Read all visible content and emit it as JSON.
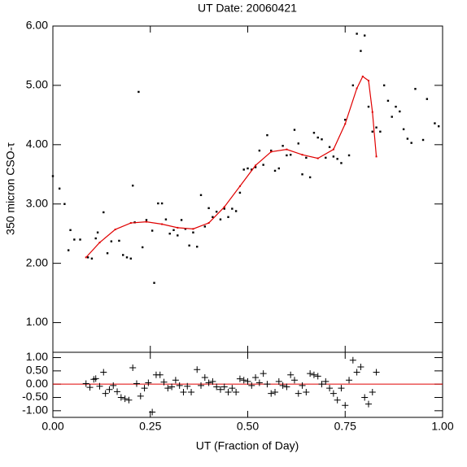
{
  "chart_data": [
    {
      "type": "scatter",
      "title": "UT Date: 20060421",
      "ylabel": "350 micron CSO-τ",
      "xlim": [
        0,
        1
      ],
      "ylim": [
        0.5,
        6.0
      ],
      "yticks": [
        {
          "value": 1,
          "label": "1.00"
        },
        {
          "value": 2,
          "label": "2.00"
        },
        {
          "value": 3,
          "label": "3.00"
        },
        {
          "value": 4,
          "label": "4.00"
        },
        {
          "value": 5,
          "label": "5.00"
        },
        {
          "value": 6,
          "label": "6.00"
        }
      ],
      "series": [
        {
          "marker": "point",
          "color": "#000000",
          "x": [
            0.0,
            0.017,
            0.03,
            0.04,
            0.045,
            0.055,
            0.07,
            0.09,
            0.1,
            0.11,
            0.115,
            0.13,
            0.14,
            0.15,
            0.17,
            0.18,
            0.19,
            0.2,
            0.205,
            0.21,
            0.22,
            0.23,
            0.24,
            0.255,
            0.26,
            0.27,
            0.28,
            0.29,
            0.3,
            0.31,
            0.32,
            0.33,
            0.34,
            0.35,
            0.36,
            0.37,
            0.38,
            0.39,
            0.4,
            0.41,
            0.42,
            0.43,
            0.44,
            0.45,
            0.46,
            0.47,
            0.48,
            0.49,
            0.5,
            0.51,
            0.52,
            0.53,
            0.54,
            0.55,
            0.56,
            0.57,
            0.58,
            0.59,
            0.6,
            0.61,
            0.62,
            0.63,
            0.64,
            0.65,
            0.66,
            0.67,
            0.68,
            0.69,
            0.7,
            0.71,
            0.72,
            0.73,
            0.74,
            0.75,
            0.76,
            0.77,
            0.78,
            0.79,
            0.8,
            0.81,
            0.82,
            0.83,
            0.84,
            0.85,
            0.86,
            0.87,
            0.88,
            0.89,
            0.9,
            0.91,
            0.92,
            0.93,
            0.95,
            0.96,
            0.98,
            0.99
          ],
          "values": [
            3.47,
            3.26,
            3.0,
            2.22,
            2.56,
            2.4,
            2.4,
            2.1,
            2.08,
            2.42,
            2.52,
            2.86,
            2.17,
            2.37,
            2.38,
            2.14,
            2.1,
            2.08,
            3.31,
            2.69,
            4.89,
            2.27,
            2.73,
            2.55,
            1.67,
            3.01,
            3.01,
            2.74,
            2.5,
            2.56,
            2.47,
            2.73,
            2.58,
            2.3,
            2.52,
            2.28,
            3.15,
            2.62,
            2.93,
            2.78,
            2.87,
            2.74,
            2.92,
            2.78,
            2.92,
            2.88,
            3.19,
            3.58,
            3.6,
            3.58,
            3.62,
            3.9,
            3.66,
            4.16,
            3.9,
            3.56,
            3.6,
            3.98,
            3.82,
            3.83,
            4.25,
            4.02,
            3.5,
            3.78,
            3.45,
            4.2,
            4.12,
            4.09,
            3.78,
            3.96,
            3.8,
            3.76,
            3.69,
            4.42,
            3.82,
            5.0,
            5.87,
            5.58,
            5.84,
            4.64,
            4.22,
            4.29,
            4.22,
            5.0,
            4.74,
            4.47,
            4.64,
            4.56,
            4.26,
            4.1,
            4.03,
            4.94,
            4.08,
            4.77,
            4.36,
            4.31
          ]
        },
        {
          "marker": "line",
          "color": "#e00000",
          "x": [
            0.085,
            0.12,
            0.16,
            0.2,
            0.24,
            0.28,
            0.32,
            0.36,
            0.4,
            0.44,
            0.48,
            0.52,
            0.56,
            0.6,
            0.64,
            0.68,
            0.72,
            0.75,
            0.78,
            0.795,
            0.81,
            0.82,
            0.83
          ],
          "values": [
            2.1,
            2.35,
            2.57,
            2.68,
            2.7,
            2.66,
            2.6,
            2.58,
            2.68,
            2.95,
            3.3,
            3.65,
            3.88,
            3.92,
            3.83,
            3.77,
            3.92,
            4.35,
            4.95,
            5.15,
            5.08,
            4.55,
            3.8
          ]
        }
      ]
    },
    {
      "type": "scatter",
      "xlabel": "UT (Fraction of Day)",
      "xlim": [
        0,
        1
      ],
      "xticks": [
        {
          "value": 0,
          "label": "0.00"
        },
        {
          "value": 0.25,
          "label": "0.25"
        },
        {
          "value": 0.5,
          "label": "0.50"
        },
        {
          "value": 0.75,
          "label": "0.75"
        },
        {
          "value": 1,
          "label": "1.00"
        }
      ],
      "ylim": [
        -1.25,
        1.2
      ],
      "yticks": [
        {
          "value": 1,
          "label": "1.00"
        },
        {
          "value": 0.5,
          "label": "0.50"
        },
        {
          "value": 0,
          "label": "0.00"
        },
        {
          "value": -0.5,
          "label": "-0.50"
        },
        {
          "value": -1,
          "label": "-1.00"
        }
      ],
      "reference_line": {
        "value": 0,
        "color": "#e00000"
      },
      "series": [
        {
          "marker": "plus",
          "color": "#000000",
          "x": [
            0.085,
            0.095,
            0.105,
            0.11,
            0.12,
            0.13,
            0.135,
            0.145,
            0.155,
            0.165,
            0.175,
            0.185,
            0.195,
            0.205,
            0.215,
            0.225,
            0.235,
            0.245,
            0.255,
            0.265,
            0.275,
            0.285,
            0.295,
            0.305,
            0.315,
            0.325,
            0.335,
            0.345,
            0.355,
            0.37,
            0.38,
            0.39,
            0.4,
            0.41,
            0.42,
            0.43,
            0.44,
            0.45,
            0.46,
            0.47,
            0.48,
            0.49,
            0.5,
            0.51,
            0.52,
            0.53,
            0.54,
            0.55,
            0.56,
            0.57,
            0.58,
            0.59,
            0.6,
            0.61,
            0.62,
            0.63,
            0.64,
            0.65,
            0.66,
            0.67,
            0.68,
            0.69,
            0.7,
            0.71,
            0.72,
            0.73,
            0.74,
            0.75,
            0.76,
            0.77,
            0.78,
            0.79,
            0.8,
            0.81,
            0.82,
            0.83
          ],
          "values": [
            0.02,
            -0.12,
            0.18,
            0.21,
            -0.08,
            0.45,
            -0.35,
            -0.2,
            -0.05,
            -0.28,
            -0.5,
            -0.55,
            -0.6,
            0.62,
            0.02,
            -0.45,
            -0.15,
            0.05,
            -1.05,
            0.35,
            0.35,
            0.08,
            -0.15,
            -0.1,
            0.15,
            -0.05,
            -0.3,
            -0.08,
            -0.3,
            0.55,
            -0.05,
            0.25,
            0.05,
            0.1,
            -0.1,
            -0.2,
            -0.1,
            -0.3,
            -0.15,
            -0.3,
            0.2,
            0.15,
            0.1,
            -0.05,
            0.25,
            0.05,
            0.4,
            0.0,
            -0.35,
            -0.3,
            0.1,
            -0.05,
            -0.1,
            0.35,
            0.15,
            -0.35,
            -0.05,
            -0.3,
            0.4,
            0.35,
            0.3,
            0.0,
            0.1,
            -0.15,
            -0.35,
            -0.6,
            -0.15,
            -0.8,
            0.15,
            0.9,
            0.45,
            0.65,
            -0.5,
            -0.75,
            -0.3,
            0.45
          ]
        }
      ]
    }
  ]
}
